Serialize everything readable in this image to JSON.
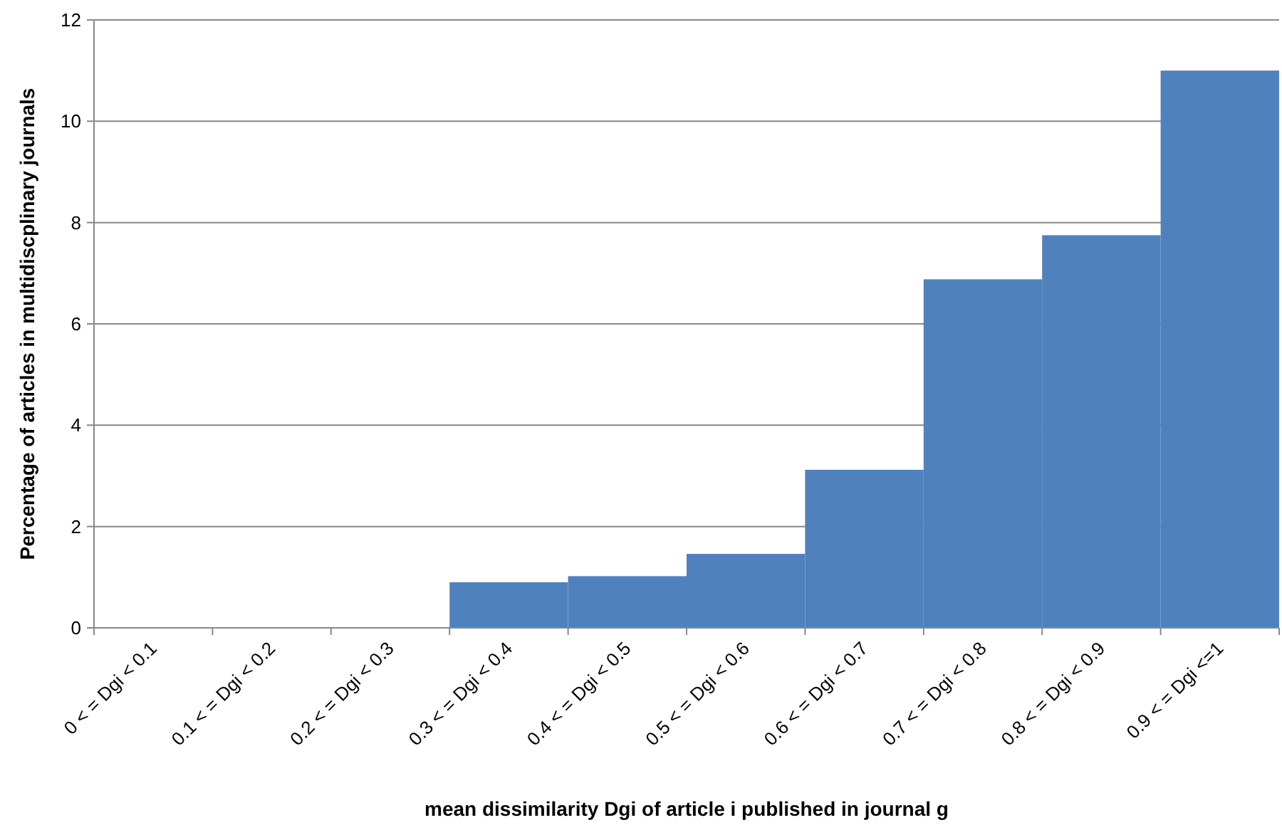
{
  "chart_data": {
    "type": "bar",
    "xlabel": "mean dissimilarity Dgi of article i published in journal g",
    "ylabel": "Percentage of articles in multidiscplinary journals",
    "categories": [
      "0 < = Dgi < 0.1",
      "0.1 < = Dgi < 0.2",
      "0.2 < = Dgi < 0.3",
      "0.3 < = Dgi < 0.4",
      "0.4 < = Dgi < 0.5",
      "0.5 < = Dgi < 0.6",
      "0.6 < = Dgi < 0.7",
      "0.7 < = Dgi < 0.8",
      "0.8 < = Dgi < 0.9",
      "0.9 < = Dgi <=1"
    ],
    "values": [
      0,
      0,
      0,
      0.9,
      1.02,
      1.46,
      3.12,
      6.88,
      7.75,
      11.0
    ],
    "color": "#4f81bd",
    "ylim": [
      0,
      12
    ],
    "yticks": [
      0,
      2,
      4,
      6,
      8,
      10,
      12
    ],
    "grid": "y"
  }
}
